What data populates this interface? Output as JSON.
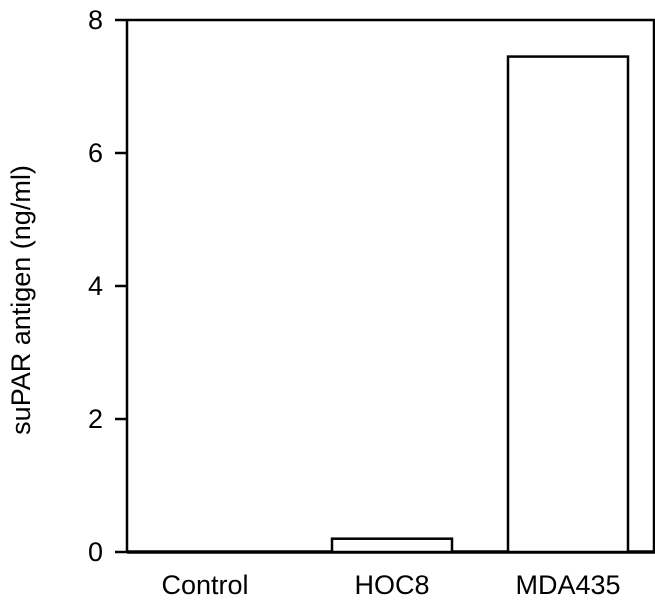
{
  "chart_data": {
    "type": "bar",
    "title": "",
    "xlabel": "",
    "ylabel": "suPAR antigen (ng/ml)",
    "categories": [
      "Control",
      "HOC8",
      "MDA435"
    ],
    "values": [
      0,
      0.2,
      7.45
    ],
    "ylim": [
      0,
      8
    ],
    "yticks": [
      0,
      2,
      4,
      6,
      8
    ],
    "grid": false,
    "legend": "none",
    "colors": {
      "bar_fill": "#ffffff",
      "bar_stroke": "#000000",
      "axis": "#000000"
    }
  }
}
